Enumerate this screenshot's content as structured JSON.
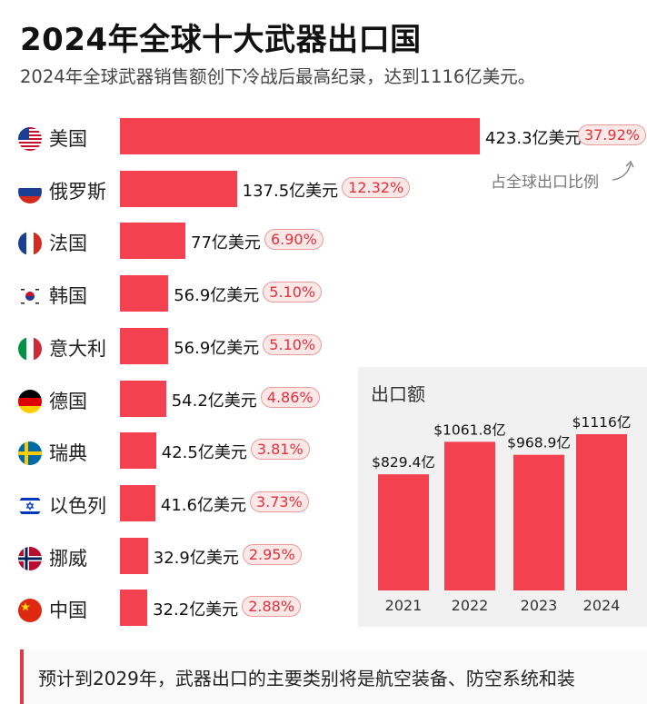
{
  "header": {
    "title": "2024年全球十大武器出口国",
    "subtitle": "2024年全球武器销售额创下冷战后最高纪录，达到1116亿美元。"
  },
  "chart_data": [
    {
      "type": "bar",
      "orientation": "horizontal",
      "categories": [
        "美国",
        "俄罗斯",
        "法国",
        "韩国",
        "意大利",
        "德国",
        "瑞典",
        "以色列",
        "挪威",
        "中国"
      ],
      "values": [
        423.3,
        137.5,
        77,
        56.9,
        56.9,
        54.2,
        42.5,
        41.6,
        32.9,
        32.2
      ],
      "value_labels": [
        "423.3亿美元",
        "137.5亿美元",
        "77亿美元",
        "56.9亿美元",
        "56.9亿美元",
        "54.2亿美元",
        "42.5亿美元",
        "41.6亿美元",
        "32.9亿美元",
        "32.2亿美元"
      ],
      "share_labels": [
        "37.92%",
        "12.32%",
        "6.90%",
        "5.10%",
        "5.10%",
        "4.86%",
        "3.81%",
        "3.73%",
        "2.95%",
        "2.88%"
      ],
      "annotation": "占全球出口比例",
      "flags": [
        "us-flag-icon",
        "russia-flag-icon",
        "france-flag-icon",
        "korea-flag-icon",
        "italy-flag-icon",
        "germany-flag-icon",
        "sweden-flag-icon",
        "israel-flag-icon",
        "norway-flag-icon",
        "china-flag-icon"
      ],
      "bar_color": "#f4414f"
    },
    {
      "type": "bar",
      "title": "出口额",
      "categories": [
        "2021",
        "2022",
        "2023",
        "2024"
      ],
      "values": [
        829.4,
        1061.8,
        968.9,
        1116
      ],
      "value_labels": [
        "$829.4亿",
        "$1061.8亿",
        "$968.9亿",
        "$1116亿"
      ],
      "bar_color": "#f4414f"
    }
  ],
  "footer": {
    "text": "预计到2029年，武器出口的主要类别将是航空装备、防空系统和装"
  }
}
